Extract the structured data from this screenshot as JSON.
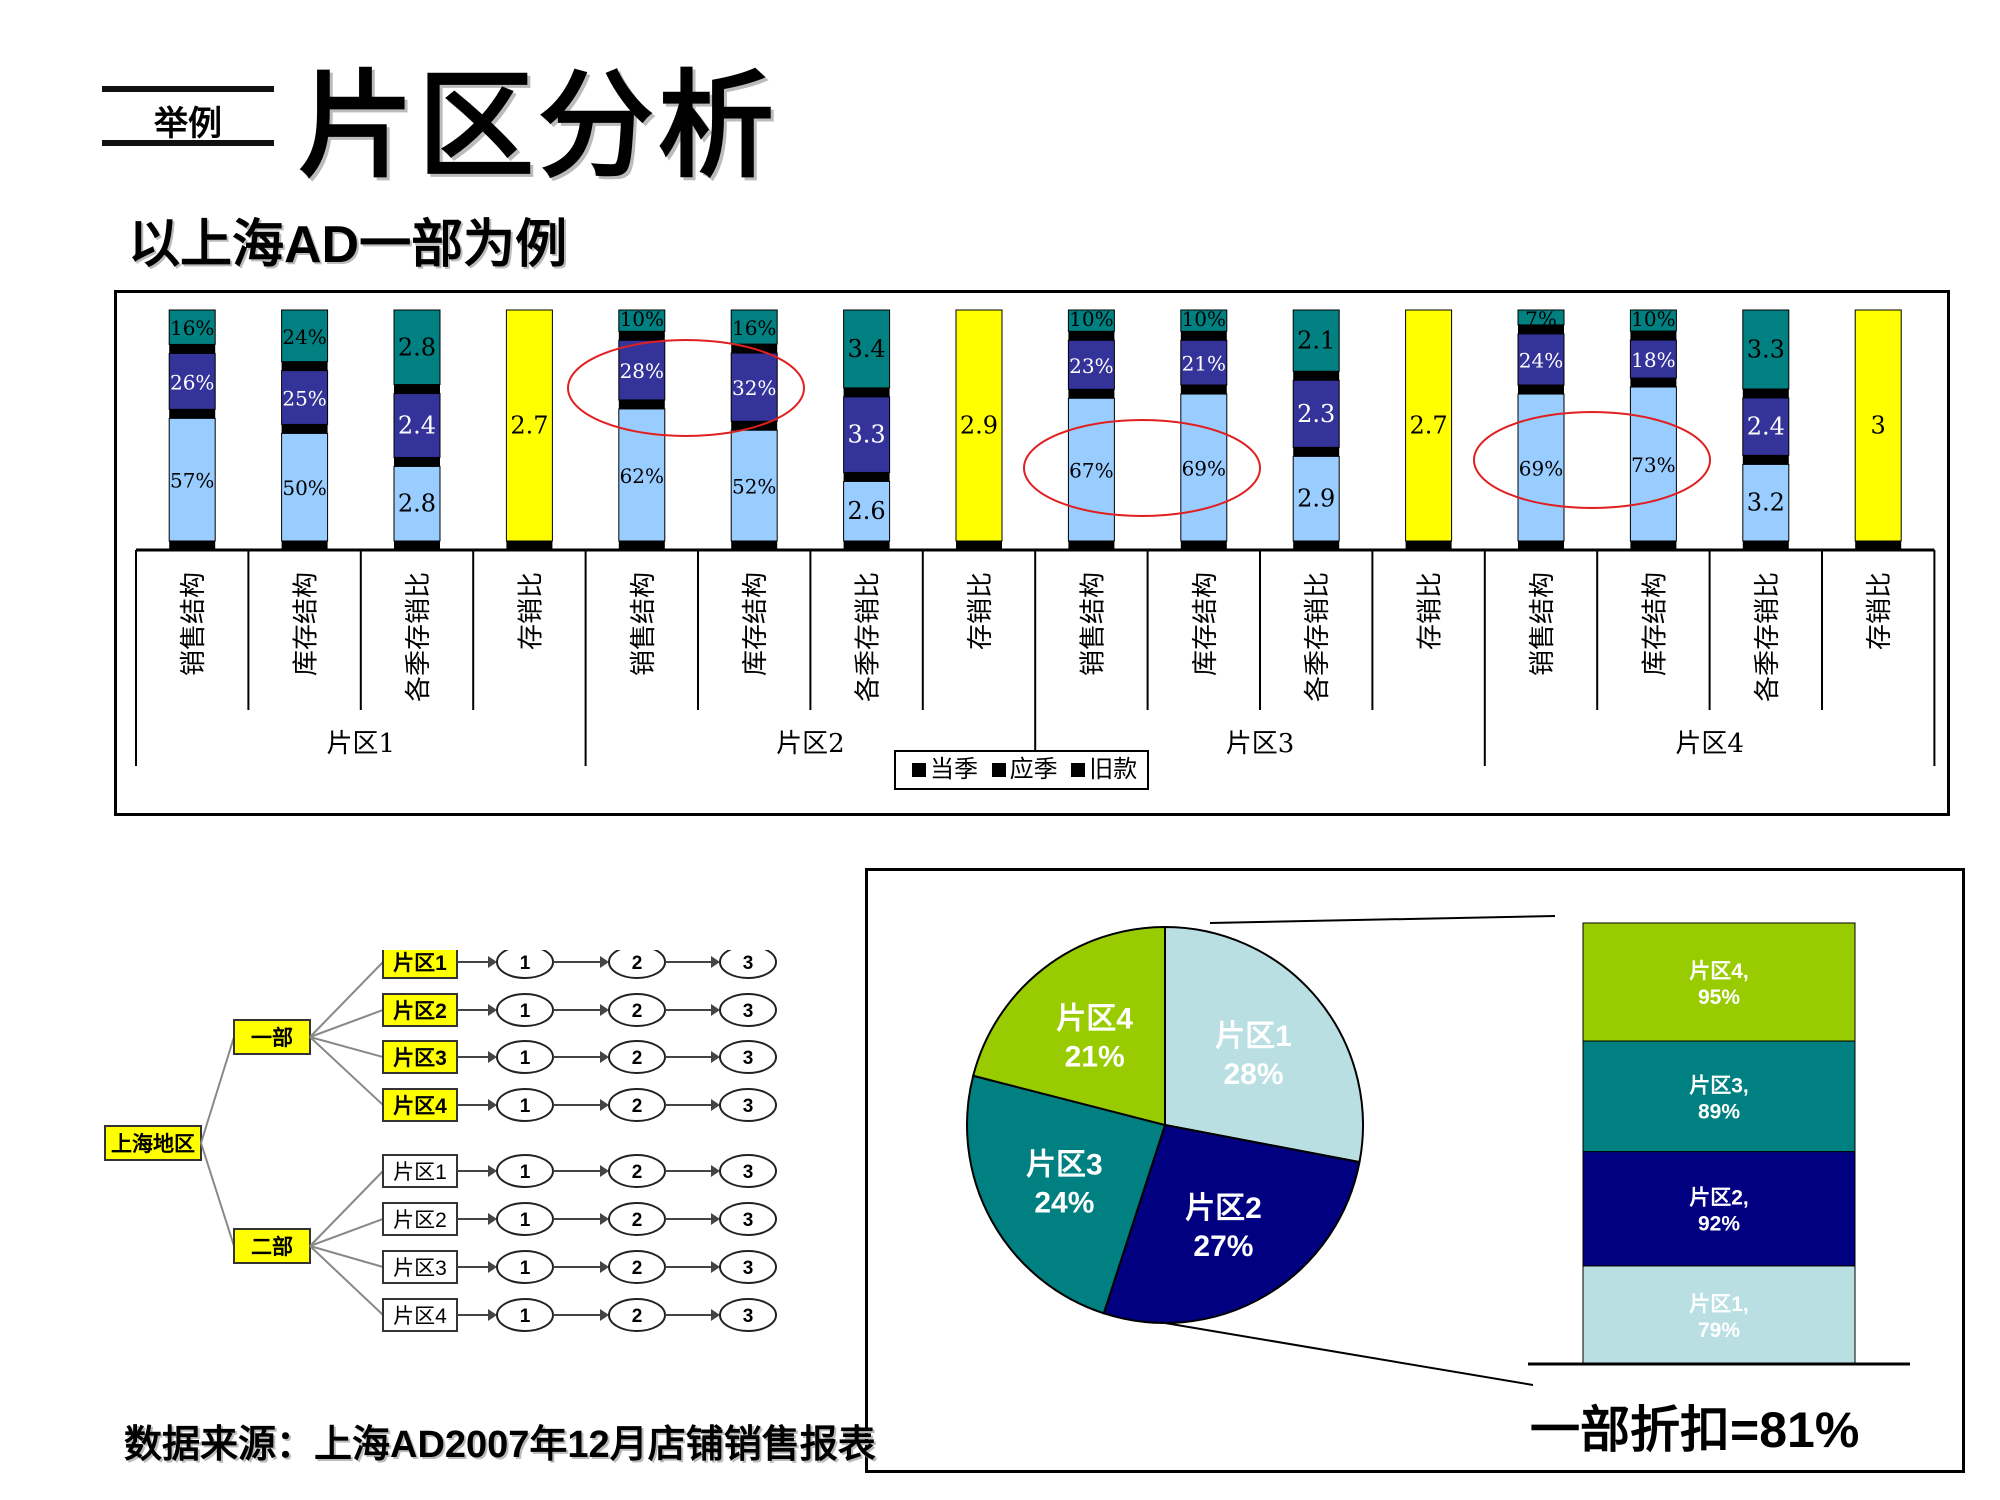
{
  "header": {
    "tag": "举例",
    "title": "片区分析",
    "subtitle": "以上海AD一部为例"
  },
  "chart_data": [
    {
      "type": "bar",
      "stacked": true,
      "groups": [
        {
          "name": "片区1",
          "bars": [
            {
              "category": "销售结构",
              "kind": "struct",
              "segments": [
                57,
                26,
                16
              ]
            },
            {
              "category": "库存结构",
              "kind": "struct",
              "segments": [
                50,
                25,
                24
              ]
            },
            {
              "category": "各季存销比",
              "kind": "season",
              "segments": [
                2.8,
                2.4,
                2.8
              ]
            },
            {
              "category": "存销比",
              "kind": "total",
              "value": 2.7
            }
          ]
        },
        {
          "name": "片区2",
          "bars": [
            {
              "category": "销售结构",
              "kind": "struct",
              "segments": [
                62,
                28,
                10
              ]
            },
            {
              "category": "库存结构",
              "kind": "struct",
              "segments": [
                52,
                32,
                16
              ]
            },
            {
              "category": "各季存销比",
              "kind": "season",
              "segments": [
                2.6,
                3.3,
                3.4
              ]
            },
            {
              "category": "存销比",
              "kind": "total",
              "value": 2.9
            }
          ]
        },
        {
          "name": "片区3",
          "bars": [
            {
              "category": "销售结构",
              "kind": "struct",
              "segments": [
                67,
                23,
                10
              ]
            },
            {
              "category": "库存结构",
              "kind": "struct",
              "segments": [
                69,
                21,
                10
              ]
            },
            {
              "category": "各季存销比",
              "kind": "season",
              "segments": [
                2.9,
                2.3,
                2.1
              ]
            },
            {
              "category": "存销比",
              "kind": "total",
              "value": 2.7
            }
          ]
        },
        {
          "name": "片区4",
          "bars": [
            {
              "category": "销售结构",
              "kind": "struct",
              "segments": [
                69,
                24,
                7
              ]
            },
            {
              "category": "库存结构",
              "kind": "struct",
              "segments": [
                73,
                18,
                10
              ]
            },
            {
              "category": "各季存销比",
              "kind": "season",
              "segments": [
                3.2,
                2.4,
                3.3
              ]
            },
            {
              "category": "存销比",
              "kind": "total",
              "value": 3
            }
          ]
        }
      ],
      "legend": [
        "当季",
        "应季",
        "旧款"
      ],
      "colors": {
        "当季": "#99ccff",
        "应季": "#333399",
        "旧款": "#008080",
        "存销比": "#ffff00",
        "separator": "#000000"
      }
    },
    {
      "type": "pie",
      "slices": [
        {
          "label": "片区1",
          "value": 28,
          "color": "#b9dfe3"
        },
        {
          "label": "片区2",
          "value": 27,
          "color": "#000080"
        },
        {
          "label": "片区3",
          "value": 24,
          "color": "#008080"
        },
        {
          "label": "片区4",
          "value": 21,
          "color": "#99cc00"
        }
      ],
      "breakout": {
        "type": "bar",
        "stacked": true,
        "segments": [
          {
            "label": "片区1",
            "value": 79,
            "color": "#b9dfe3"
          },
          {
            "label": "片区2",
            "value": 92,
            "color": "#000080"
          },
          {
            "label": "片区3",
            "value": 89,
            "color": "#008080"
          },
          {
            "label": "片区4",
            "value": 95,
            "color": "#99cc00"
          }
        ]
      }
    }
  ],
  "tree": {
    "root": "上海地区",
    "departments": [
      {
        "label": "一部",
        "highlight": true,
        "zones": [
          "片区1",
          "片区2",
          "片区3",
          "片区4"
        ]
      },
      {
        "label": "二部",
        "highlight": true,
        "zones": [
          "片区1",
          "片区2",
          "片区3",
          "片区4"
        ]
      }
    ],
    "steps": [
      "1",
      "2",
      "3"
    ]
  },
  "discount_text": "一部折扣=81%",
  "source_text": "数据来源：上海AD2007年12月店铺销售报表"
}
